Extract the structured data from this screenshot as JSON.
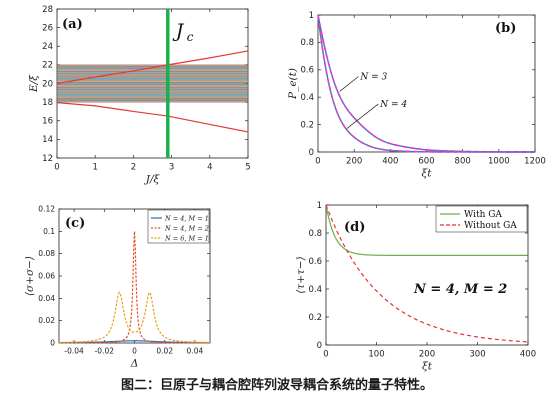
{
  "caption": "图二：巨原子与耦合腔阵列波导耦合系统的量子特性。",
  "chart_data": [
    {
      "id": "a",
      "type": "line",
      "panel_label": "(a)",
      "xlabel": "J/ξ",
      "ylabel": "E/ξ",
      "xlim": [
        0,
        5
      ],
      "ylim": [
        12,
        28
      ],
      "xticks": [
        0,
        1,
        2,
        3,
        4,
        5
      ],
      "yticks": [
        12,
        14,
        16,
        18,
        20,
        22,
        24,
        26,
        28
      ],
      "band": {
        "y_low": 18,
        "y_high": 22,
        "x_from": 0,
        "x_to": 5
      },
      "vertical_marker": {
        "x": 2.9,
        "label": "J",
        "label_sub": "c",
        "color": "#19b14b"
      },
      "series": [
        {
          "x": [
            0,
            1,
            2,
            2.9,
            4,
            5
          ],
          "values": [
            20,
            20.7,
            21.35,
            22,
            22.75,
            23.5
          ]
        },
        {
          "x": [
            0,
            1,
            2,
            2.9,
            4,
            5
          ],
          "values": [
            17.95,
            17.6,
            17.0,
            16.5,
            15.6,
            14.8
          ]
        }
      ]
    },
    {
      "id": "b",
      "type": "line",
      "panel_label": "(b)",
      "xlabel": "ξt",
      "ylabel": "P_e(t)",
      "xlim": [
        0,
        1200
      ],
      "ylim": [
        0,
        1
      ],
      "xticks": [
        0,
        200,
        400,
        600,
        800,
        1000,
        1200
      ],
      "yticks": [
        0,
        0.2,
        0.4,
        0.6,
        0.8,
        1
      ],
      "annotations": [
        {
          "text": "N = 3",
          "x": 190,
          "y": 0.55
        },
        {
          "text": "N = 4",
          "x": 300,
          "y": 0.35
        }
      ],
      "series": [
        {
          "name": "N = 3",
          "decay": 0.0068
        },
        {
          "name": "N = 4",
          "decay": 0.011
        }
      ]
    },
    {
      "id": "c",
      "type": "line",
      "panel_label": "(c)",
      "xlabel": "Δ",
      "ylabel": "⟨σ+σ−⟩",
      "xlim": [
        -0.05,
        0.05
      ],
      "ylim": [
        0,
        0.12
      ],
      "xticks": [
        -0.04,
        -0.02,
        0,
        0.02,
        0.04
      ],
      "yticks": [
        0,
        0.02,
        0.04,
        0.06,
        0.08,
        0.1,
        0.12
      ],
      "legend_placement": "top-right",
      "series": [
        {
          "name": "N = 4, M = 1",
          "color": "#2f6db5",
          "peak": 0.002,
          "center": 0
        },
        {
          "name": "N = 4, M = 2",
          "color": "#e2582c",
          "peak": 0.1,
          "center": 0
        },
        {
          "name": "N = 6, M = 1",
          "color": "#e8a215",
          "peak": 0.044,
          "center": 0.01
        }
      ]
    },
    {
      "id": "d",
      "type": "line",
      "panel_label": "(d)",
      "xlabel": "ξt",
      "ylabel": "⟨τ+τ−⟩",
      "xlim": [
        0,
        400
      ],
      "ylim": [
        0,
        1
      ],
      "xticks": [
        0,
        100,
        200,
        300,
        400
      ],
      "yticks": [
        0,
        0.2,
        0.4,
        0.6,
        0.8,
        1
      ],
      "legend_placement": "top-right",
      "annotation": "N = 4, M = 2",
      "series": [
        {
          "name": "With GA",
          "color": "#6ab04c",
          "final": 0.64
        },
        {
          "name": "Without GA",
          "color": "#e83030",
          "final": 0.0
        }
      ]
    }
  ]
}
